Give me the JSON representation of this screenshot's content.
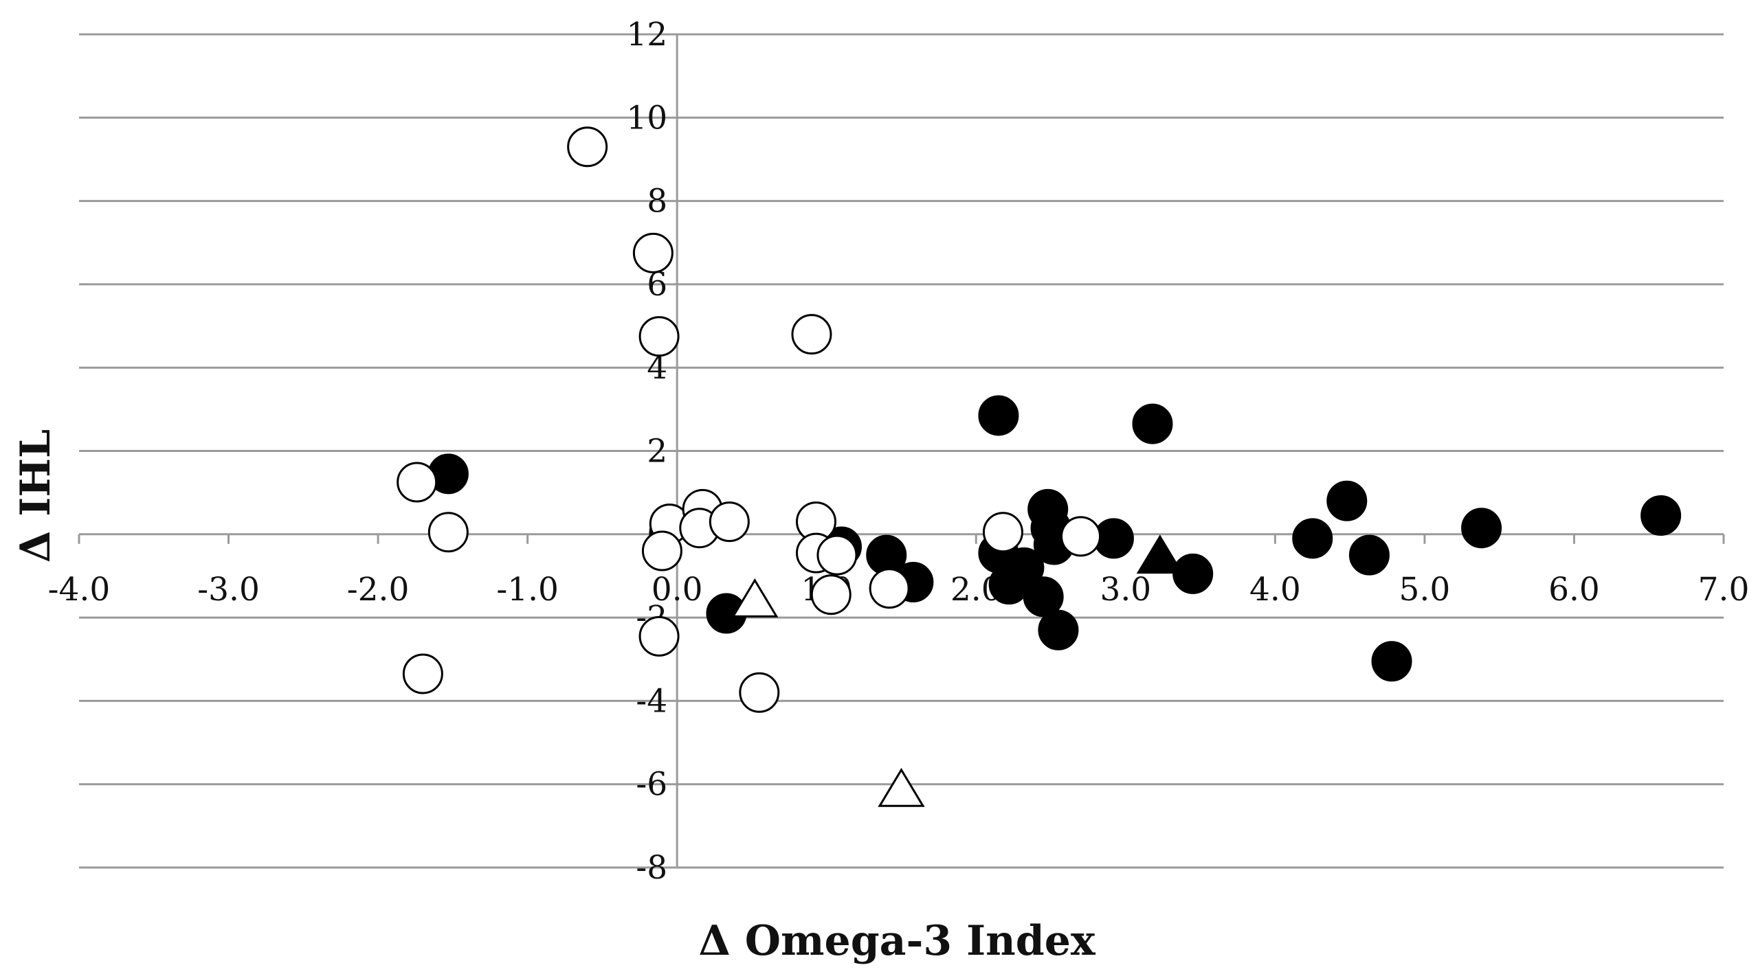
{
  "chart_data": {
    "type": "scatter",
    "title": "",
    "xlabel": "Δ Omega-3 Index",
    "ylabel": "Δ IHL",
    "xlim": [
      -4.0,
      7.0
    ],
    "ylim": [
      -8,
      12
    ],
    "x_ticks": [
      -4.0,
      -3.0,
      -2.0,
      -1.0,
      0.0,
      1.0,
      2.0,
      3.0,
      4.0,
      5.0,
      6.0,
      7.0
    ],
    "x_tick_labels": [
      "-4.0",
      "-3.0",
      "-2.0",
      "-1.0",
      "0.0",
      "1.0",
      "2.0",
      "3.0",
      "4.0",
      "5.0",
      "6.0",
      "7.0"
    ],
    "y_ticks": [
      -8,
      -6,
      -4,
      -2,
      0,
      2,
      4,
      6,
      8,
      10,
      12
    ],
    "y_tick_labels": [
      "-8",
      "-6",
      "-4",
      "-2",
      "0",
      "2",
      "4",
      "6",
      "8",
      "10",
      "12"
    ],
    "grid": "horizontal",
    "legend": "none",
    "series": [
      {
        "name": "filled-circles",
        "marker": "circle",
        "fill": "#000000",
        "points": [
          [
            -1.53,
            1.45
          ],
          [
            0.33,
            -1.9
          ],
          [
            1.1,
            -0.3
          ],
          [
            1.4,
            -0.5
          ],
          [
            1.58,
            -1.15
          ],
          [
            2.15,
            2.85
          ],
          [
            2.15,
            -0.45
          ],
          [
            2.22,
            -1.2
          ],
          [
            2.32,
            -0.8
          ],
          [
            2.45,
            -1.5
          ],
          [
            2.48,
            0.6
          ],
          [
            2.5,
            0.15
          ],
          [
            2.52,
            -0.25
          ],
          [
            2.55,
            -2.3
          ],
          [
            2.92,
            -0.1
          ],
          [
            3.18,
            2.65
          ],
          [
            3.45,
            -0.95
          ],
          [
            4.25,
            -0.1
          ],
          [
            4.48,
            0.8
          ],
          [
            4.63,
            -0.5
          ],
          [
            4.78,
            -3.05
          ],
          [
            5.38,
            0.15
          ],
          [
            6.58,
            0.45
          ]
        ]
      },
      {
        "name": "open-circles",
        "marker": "circle",
        "fill": "#ffffff",
        "points": [
          [
            -0.6,
            9.3
          ],
          [
            -0.16,
            6.75
          ],
          [
            -0.12,
            4.75
          ],
          [
            0.9,
            4.8
          ],
          [
            -1.74,
            1.25
          ],
          [
            -1.53,
            0.05
          ],
          [
            -0.05,
            0.25
          ],
          [
            0.17,
            0.6
          ],
          [
            0.15,
            0.15
          ],
          [
            0.35,
            0.3
          ],
          [
            -0.1,
            -0.4
          ],
          [
            -0.12,
            -2.45
          ],
          [
            -1.7,
            -3.35
          ],
          [
            0.55,
            -3.8
          ],
          [
            0.93,
            0.3
          ],
          [
            0.93,
            -0.45
          ],
          [
            1.03,
            -1.45
          ],
          [
            1.07,
            -0.5
          ],
          [
            1.42,
            -1.3
          ],
          [
            2.18,
            0.05
          ],
          [
            2.7,
            -0.05
          ]
        ]
      },
      {
        "name": "open-triangles",
        "marker": "triangle",
        "fill": "#ffffff",
        "points": [
          [
            0.52,
            -1.6
          ],
          [
            1.5,
            -6.15
          ]
        ]
      },
      {
        "name": "filled-triangles",
        "marker": "triangle",
        "fill": "#000000",
        "points": [
          [
            3.23,
            -0.55
          ]
        ]
      }
    ]
  }
}
